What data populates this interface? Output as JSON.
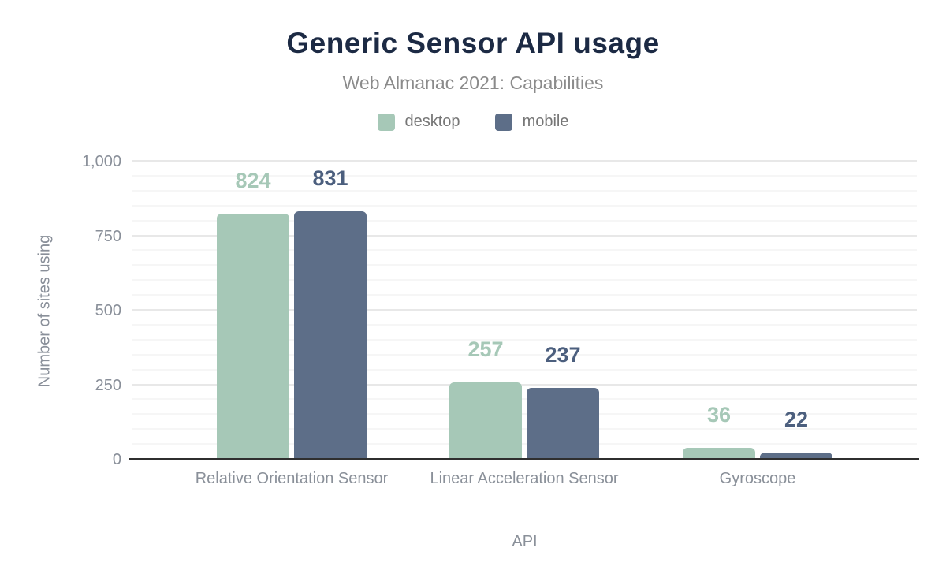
{
  "chart_data": {
    "type": "bar",
    "title": "Generic Sensor API usage",
    "subtitle": "Web Almanac 2021: Capabilities",
    "xlabel": "API",
    "ylabel": "Number of sites using",
    "categories": [
      "Relative Orientation Sensor",
      "Linear Acceleration Sensor",
      "Gyroscope"
    ],
    "series": [
      {
        "name": "desktop",
        "color": "#a6c8b7",
        "label_color": "#a6c8b7",
        "values": [
          824,
          257,
          36
        ]
      },
      {
        "name": "mobile",
        "color": "#5d6e88",
        "label_color": "#4c5f7e",
        "values": [
          831,
          237,
          22
        ]
      }
    ],
    "ylim": [
      0,
      1000
    ],
    "yticks": [
      0,
      250,
      500,
      750,
      1000
    ],
    "ytick_labels": [
      "0",
      "250",
      "500",
      "750",
      "1,000"
    ],
    "grid": {
      "minor_step": 50,
      "major_step": 250,
      "on": true
    },
    "legend_position": "top"
  },
  "colors": {
    "title": "#1c2a44",
    "subtitle": "#8b8b8b",
    "legend_text": "#767676",
    "axis_text": "#898f99",
    "axis_line": "#2f2f2f",
    "grid_minor": "#f6f6f6",
    "grid_major": "#e8e8e8",
    "background": "#ffffff"
  }
}
